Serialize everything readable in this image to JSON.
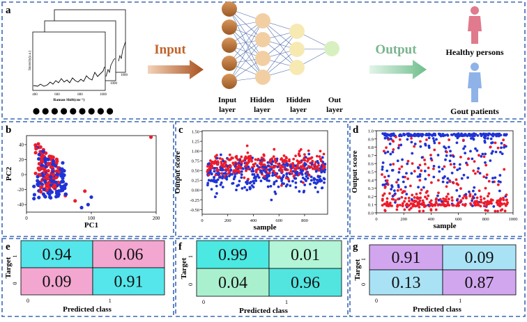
{
  "panel_letters": {
    "a": "a",
    "b": "b",
    "c": "c",
    "d": "d",
    "e": "e",
    "f": "f",
    "g": "g"
  },
  "colors": {
    "frame": "#3a68b5",
    "red": "#ee1c2b",
    "blue": "#1f33d6",
    "input_arrow": "#b35c24",
    "output_arrow": "#7fc99a",
    "input_text": "#c0632a",
    "output_text": "#79b58e",
    "input_node": "#b87333",
    "hidden_node": "#f2cfa3",
    "hidden2_node": "#f7e9b2",
    "out_node": "#d8f0c0",
    "healthy_person": "#e07a8c",
    "gout_patient": "#8fb3e8"
  },
  "panel_a": {
    "spectrum": {
      "ylabel": "Intensity(a.u.)",
      "xlabel": "Raman Shift(cm⁻¹)",
      "xticks": [
        "400",
        "600",
        "800",
        "1000"
      ],
      "back_tick": "1000",
      "mid_tick": "1000"
    },
    "dots_count": 9,
    "input_label": "Input",
    "output_label": "Output",
    "layers": [
      {
        "l1": "Input",
        "l2": "layer"
      },
      {
        "l1": "Hidden",
        "l2": "layer"
      },
      {
        "l1": "Hidden",
        "l2": "layer"
      },
      {
        "l1": "Out",
        "l2": "layer"
      }
    ],
    "node_counts": [
      5,
      4,
      3,
      1
    ],
    "classes": {
      "healthy": "Healthy persons",
      "gout": "Gout patients"
    }
  },
  "chart_data": [
    {
      "id": "b",
      "type": "scatter",
      "xlabel": "PC1",
      "ylabel": "PC2",
      "xlim": [
        0,
        200
      ],
      "ylim": [
        -50,
        52
      ],
      "xticks": [
        0,
        100,
        200
      ],
      "yticks": [
        -40,
        -20,
        0,
        20,
        40
      ],
      "series": [
        {
          "color": "red",
          "cluster": {
            "x": [
              15,
              50
            ],
            "y": [
              -25,
              45
            ]
          },
          "count": 110,
          "outliers": [
            [
              192,
              50
            ],
            [
              75,
              -35
            ],
            [
              90,
              -22
            ],
            [
              60,
              -28
            ]
          ]
        },
        {
          "color": "blue",
          "cluster": {
            "x": [
              15,
              60
            ],
            "y": [
              -35,
              40
            ]
          },
          "count": 120,
          "outliers": [
            [
              95,
              -40
            ],
            [
              100,
              -30
            ],
            [
              85,
              -44
            ],
            [
              40,
              -15
            ]
          ]
        }
      ]
    },
    {
      "id": "c",
      "type": "scatter",
      "xlabel": "sample",
      "ylabel": "Output score",
      "xlim": [
        0,
        980
      ],
      "ylim": [
        -0.62,
        1.52
      ],
      "xticks": [
        0,
        200,
        400,
        600,
        800
      ],
      "yticks": [
        -0.5,
        -0.25,
        0.0,
        0.25,
        0.5,
        0.75,
        1.0,
        1.25,
        1.5
      ],
      "ytick_labels": [
        "-0.50",
        "-0.25",
        "0.00",
        "0.25",
        "0.50",
        "0.75",
        "1.00",
        "1.25",
        "1.50"
      ],
      "series": [
        {
          "color": "red",
          "count": 330,
          "center": 0.63,
          "spread": 0.22
        },
        {
          "color": "blue",
          "count": 330,
          "center": 0.38,
          "spread": 0.32
        }
      ]
    },
    {
      "id": "d",
      "type": "scatter",
      "xlabel": "sample",
      "ylabel": "Output score",
      "xlim": [
        0,
        1000
      ],
      "ylim": [
        0,
        1.0
      ],
      "xticks": [
        0,
        200,
        400,
        600,
        800,
        1000
      ],
      "yticks": [
        0.0,
        0.1,
        0.2,
        0.3,
        0.4,
        0.5,
        0.6,
        0.7,
        0.8,
        0.9,
        1.0
      ],
      "ytick_labels": [
        "0.0",
        "0.1",
        "0.2",
        "0.3",
        "0.4",
        "0.5",
        "0.6",
        "0.7",
        "0.8",
        "0.9",
        "1.0"
      ],
      "series": [
        {
          "color": "blue",
          "count": 330,
          "top_band": 0.95
        },
        {
          "color": "red",
          "count": 330,
          "bottom_band": 0.08
        }
      ]
    },
    {
      "id": "e",
      "type": "heatmap",
      "xlabel": "Predicted class",
      "ylabel": "Target",
      "row_labels": [
        "1",
        "0"
      ],
      "col_labels": [
        "0",
        "1"
      ],
      "values": [
        [
          "0.94",
          "0.06"
        ],
        [
          "0.09",
          "0.91"
        ]
      ],
      "cell_colors": [
        [
          "#54e6ea",
          "#f3a6d0"
        ],
        [
          "#f3a6d0",
          "#54e6ea"
        ]
      ]
    },
    {
      "id": "f",
      "type": "heatmap",
      "xlabel": "Predicted class",
      "ylabel": "Target",
      "row_labels": [
        "1",
        "0"
      ],
      "col_labels": [
        "0",
        "1"
      ],
      "values": [
        [
          "0.99",
          "0.01"
        ],
        [
          "0.04",
          "0.96"
        ]
      ],
      "cell_colors": [
        [
          "#4ce8e2",
          "#b3f5d6"
        ],
        [
          "#a9f0cf",
          "#52e5e0"
        ]
      ]
    },
    {
      "id": "g",
      "type": "heatmap",
      "xlabel": "Predicted class",
      "ylabel": "Target",
      "row_labels": [
        "1",
        "0"
      ],
      "col_labels": [
        "0",
        "1"
      ],
      "values": [
        [
          "0.91",
          "0.09"
        ],
        [
          "0.13",
          "0.87"
        ]
      ],
      "cell_colors": [
        [
          "#d1a6ef",
          "#a9e2f5"
        ],
        [
          "#a9e2f5",
          "#d1a6ef"
        ]
      ]
    }
  ]
}
